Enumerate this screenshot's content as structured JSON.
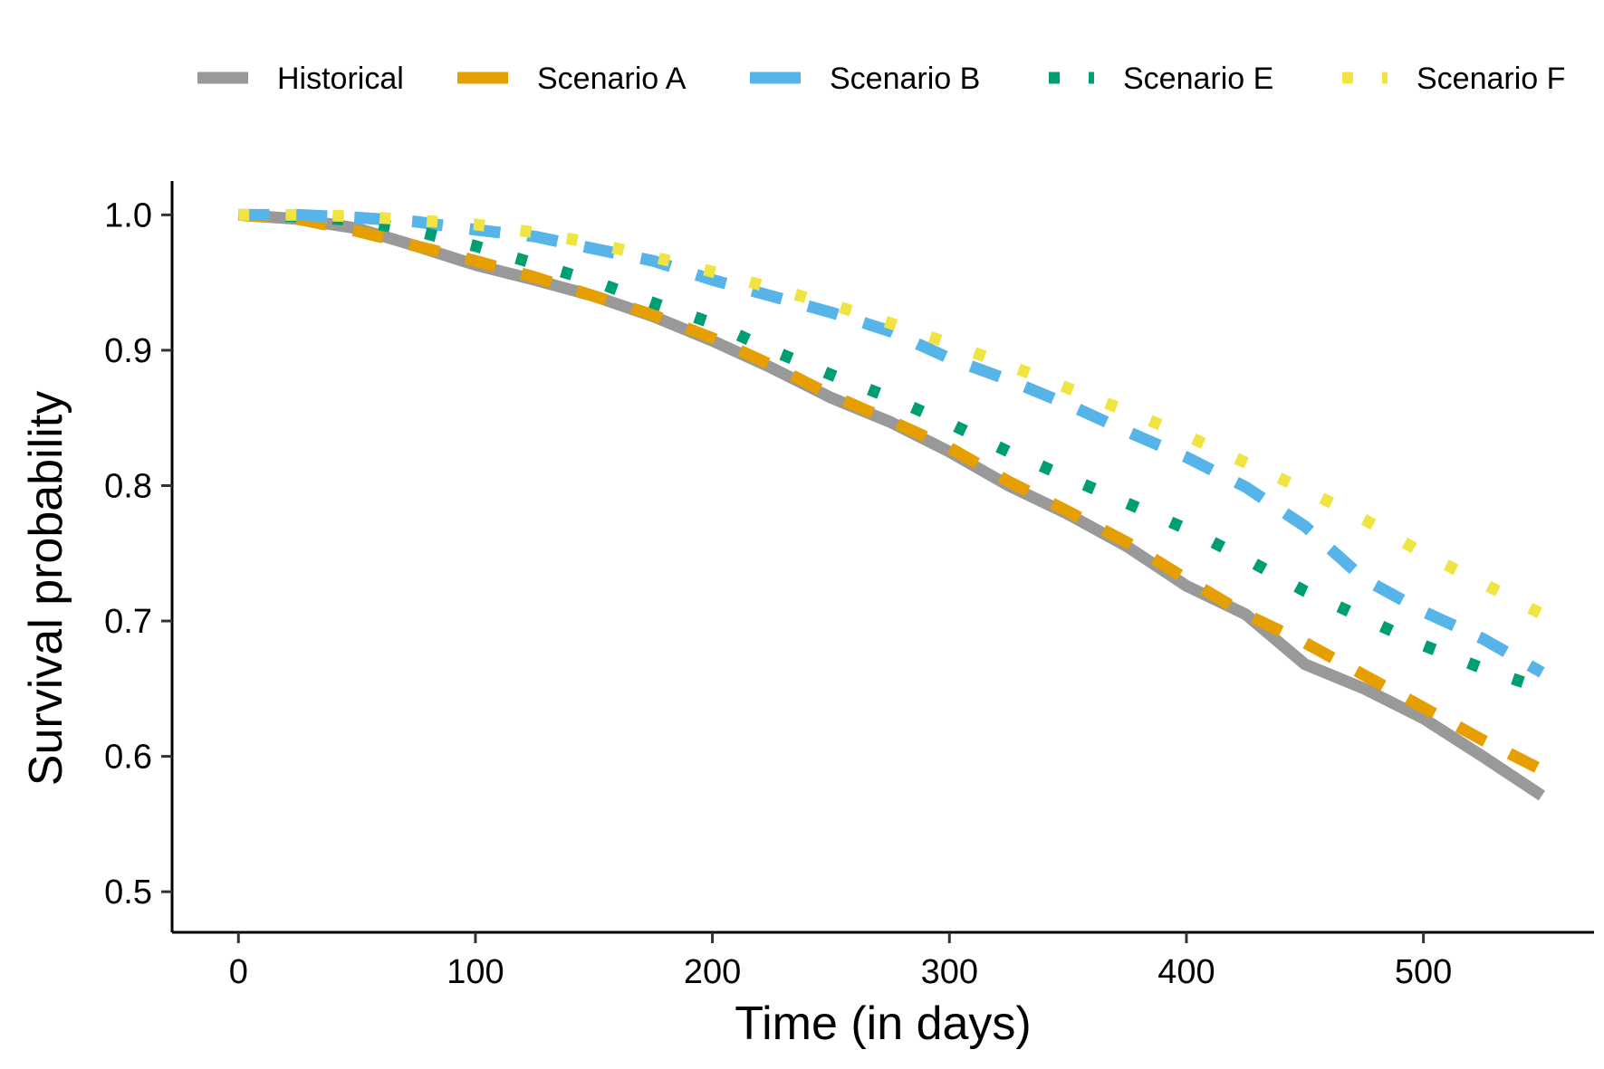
{
  "chart_data": {
    "type": "line",
    "title": "",
    "xlabel": "Time (in days)",
    "ylabel": "Survival probability",
    "xlim": [
      -28,
      572
    ],
    "ylim": [
      0.47,
      1.025
    ],
    "xticks": [
      0,
      100,
      200,
      300,
      400,
      500
    ],
    "yticks": [
      0.5,
      0.6,
      0.7,
      0.8,
      0.9,
      1.0
    ],
    "xtick_labels": [
      "0",
      "100",
      "200",
      "300",
      "400",
      "500"
    ],
    "ytick_labels": [
      "0.5",
      "0.6",
      "0.7",
      "0.8",
      "0.9",
      "1.0"
    ],
    "grid": false,
    "legend_position": "top",
    "series": [
      {
        "name": "Historical",
        "color": "#999999",
        "dash": "solid",
        "x": [
          0,
          25,
          50,
          75,
          100,
          125,
          150,
          175,
          200,
          225,
          250,
          275,
          300,
          325,
          350,
          375,
          400,
          425,
          450,
          475,
          500,
          525,
          550
        ],
        "y": [
          1.0,
          0.997,
          0.99,
          0.977,
          0.963,
          0.952,
          0.94,
          0.925,
          0.907,
          0.887,
          0.865,
          0.847,
          0.825,
          0.8,
          0.779,
          0.755,
          0.726,
          0.705,
          0.668,
          0.65,
          0.628,
          0.6,
          0.571
        ]
      },
      {
        "name": "Scenario A",
        "color": "#E69F00",
        "dash": "long-dash",
        "x": [
          0,
          25,
          50,
          75,
          100,
          125,
          150,
          175,
          200,
          225,
          250,
          275,
          300,
          325,
          350,
          375,
          400,
          425,
          450,
          475,
          500,
          525,
          550
        ],
        "y": [
          1.0,
          0.997,
          0.988,
          0.977,
          0.966,
          0.954,
          0.94,
          0.926,
          0.909,
          0.889,
          0.867,
          0.848,
          0.828,
          0.803,
          0.781,
          0.758,
          0.731,
          0.705,
          0.684,
          0.66,
          0.636,
          0.612,
          0.59
        ]
      },
      {
        "name": "Scenario B",
        "color": "#56B4E9",
        "dash": "long-dash",
        "x": [
          0,
          25,
          50,
          75,
          100,
          125,
          150,
          175,
          200,
          225,
          250,
          275,
          300,
          325,
          350,
          375,
          400,
          425,
          450,
          475,
          500,
          525,
          550
        ],
        "y": [
          1.0,
          1.0,
          0.998,
          0.995,
          0.989,
          0.984,
          0.975,
          0.966,
          0.952,
          0.94,
          0.928,
          0.914,
          0.894,
          0.878,
          0.86,
          0.84,
          0.821,
          0.799,
          0.77,
          0.731,
          0.707,
          0.687,
          0.662
        ]
      },
      {
        "name": "Scenario E",
        "color": "#009E73",
        "dash": "dotted",
        "x": [
          0,
          25,
          50,
          75,
          100,
          125,
          150,
          175,
          200,
          225,
          250,
          275,
          300,
          325,
          350,
          375,
          400,
          425,
          450,
          475,
          500,
          525,
          550
        ],
        "y": [
          1.0,
          0.999,
          0.996,
          0.988,
          0.977,
          0.964,
          0.951,
          0.935,
          0.92,
          0.9,
          0.882,
          0.865,
          0.846,
          0.825,
          0.806,
          0.787,
          0.768,
          0.746,
          0.722,
          0.702,
          0.682,
          0.665,
          0.65
        ]
      },
      {
        "name": "Scenario F",
        "color": "#F0E442",
        "dash": "dotted",
        "x": [
          0,
          25,
          50,
          75,
          100,
          125,
          150,
          175,
          200,
          225,
          250,
          275,
          300,
          325,
          350,
          375,
          400,
          425,
          450,
          475,
          500,
          525,
          550
        ],
        "y": [
          1.0,
          1.0,
          0.999,
          0.996,
          0.993,
          0.987,
          0.979,
          0.969,
          0.958,
          0.946,
          0.934,
          0.92,
          0.905,
          0.889,
          0.872,
          0.855,
          0.837,
          0.817,
          0.797,
          0.775,
          0.75,
          0.728,
          0.705
        ]
      }
    ]
  }
}
